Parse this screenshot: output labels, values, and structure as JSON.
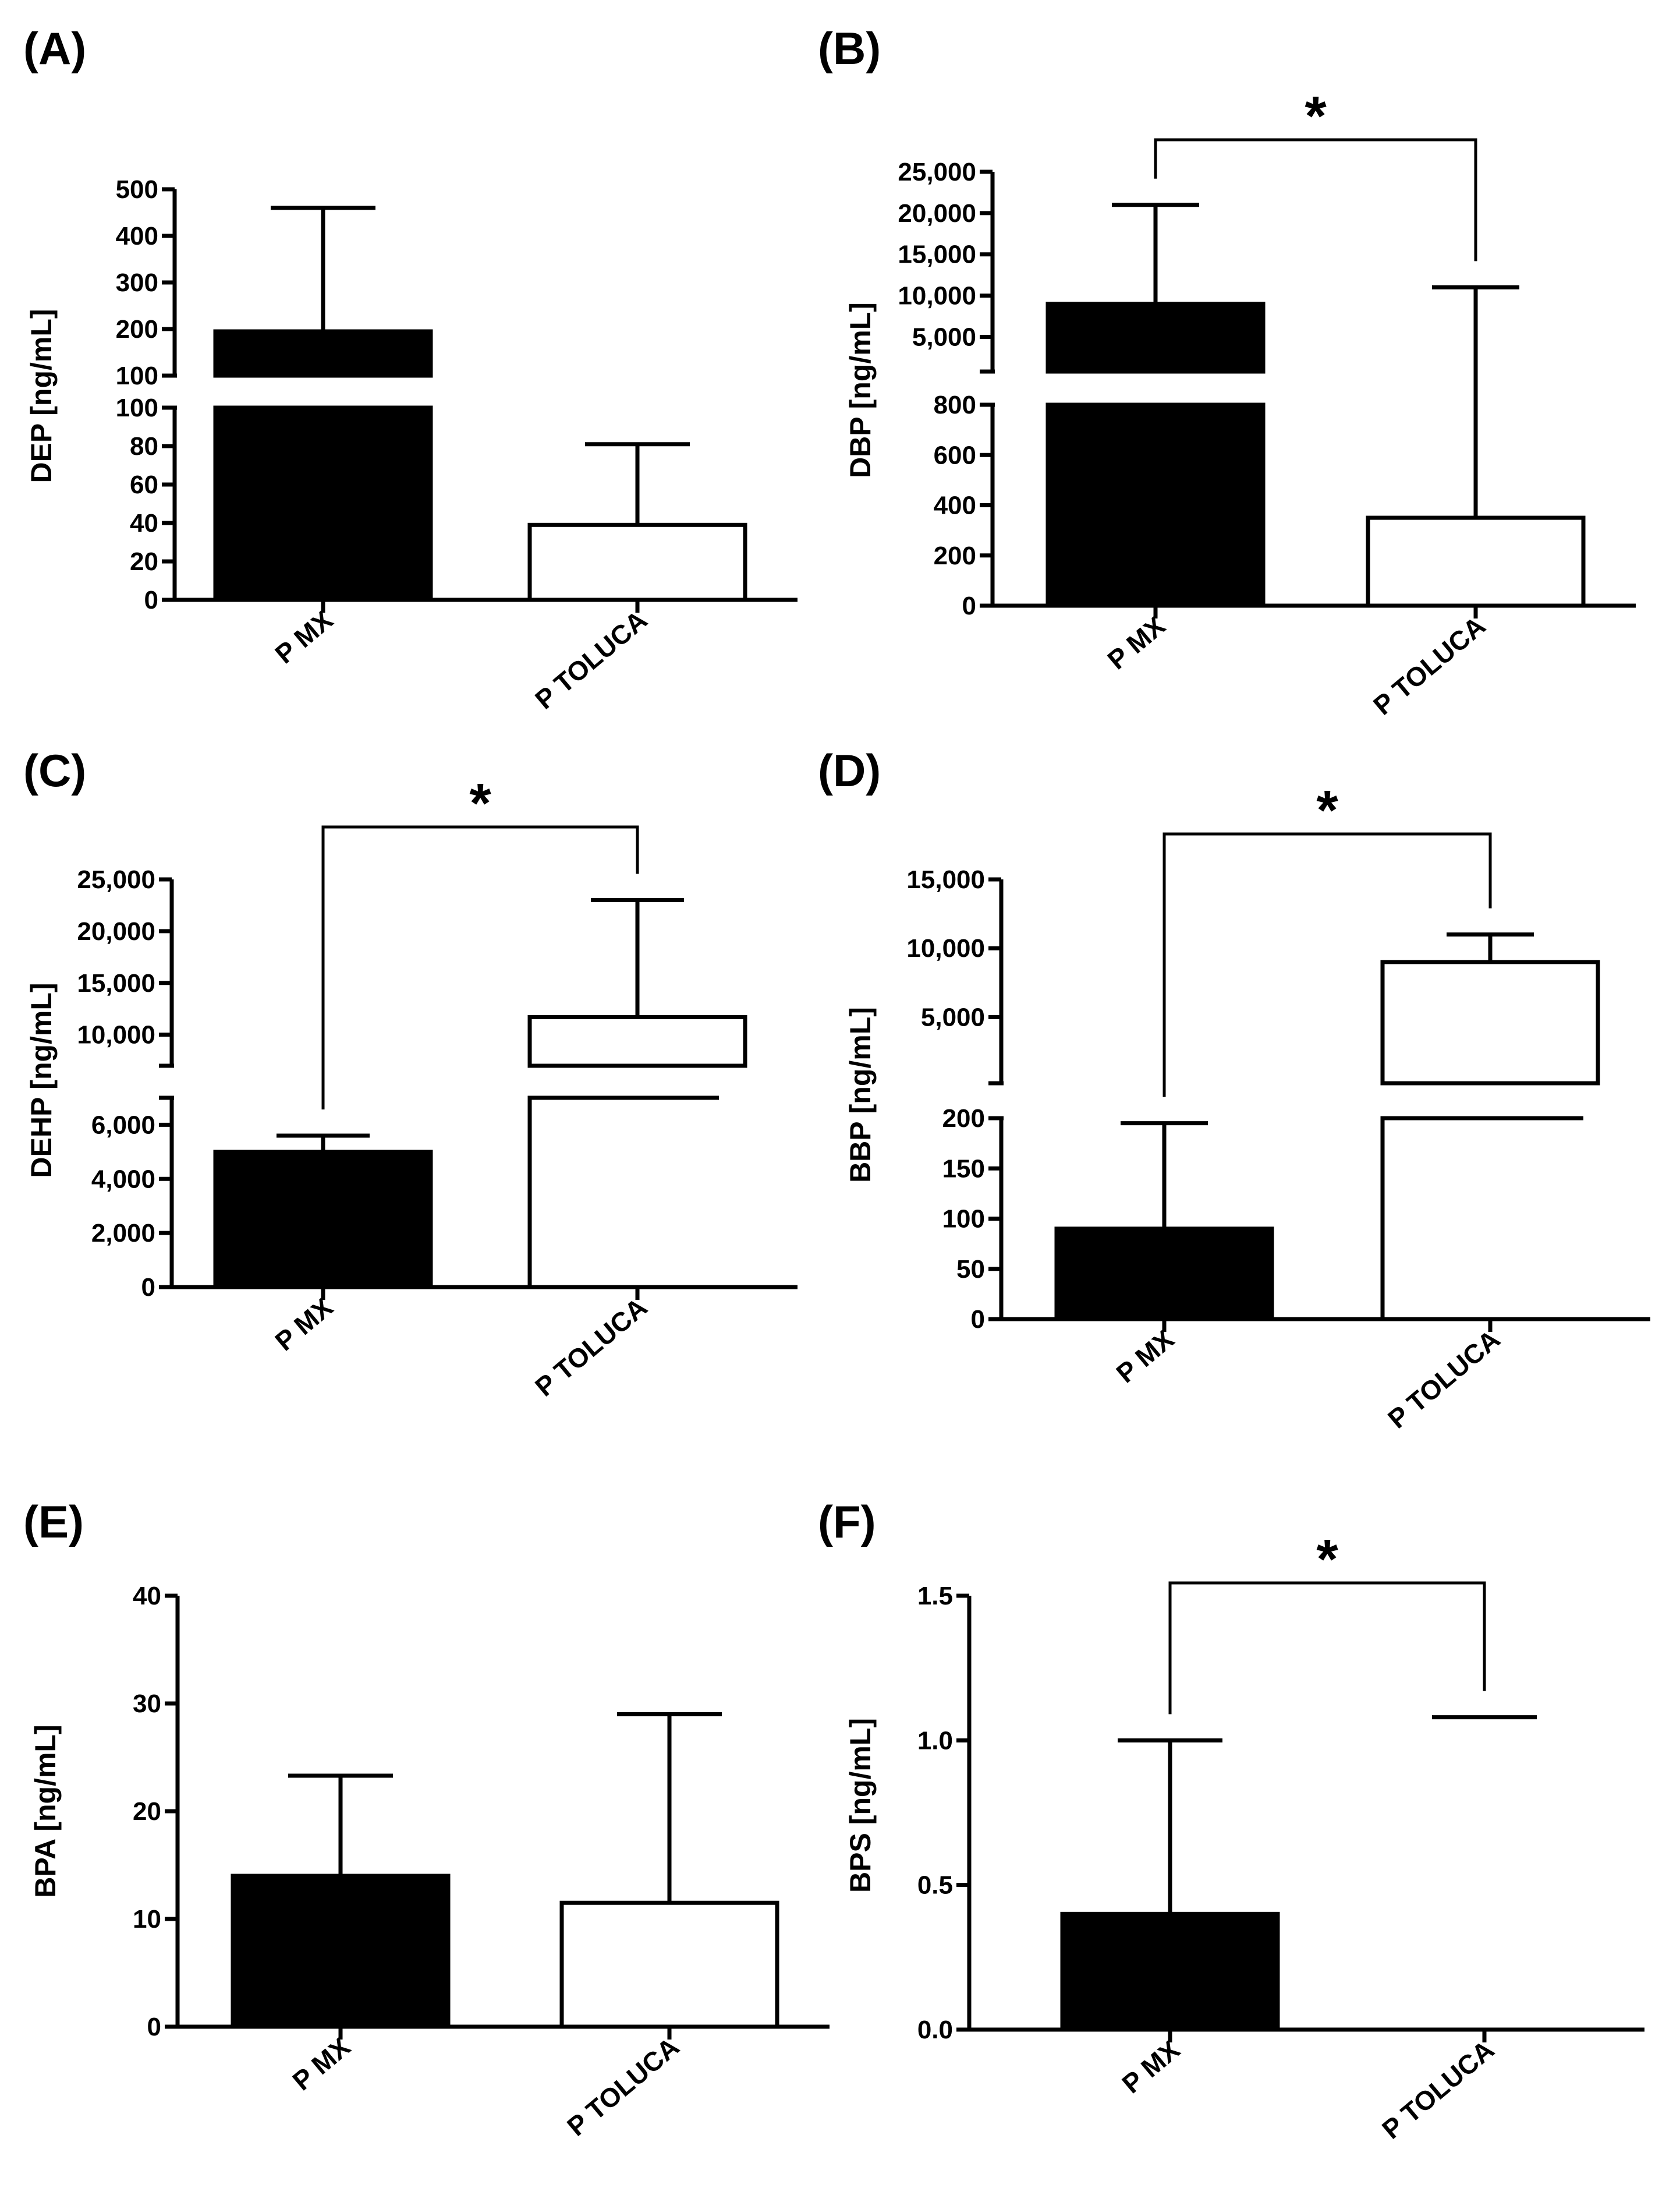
{
  "chart_data": [
    {
      "id": "A",
      "type": "bar",
      "panel_label": "(A)",
      "ylabel": "DEP [ng/mL]",
      "categories": [
        "P MX",
        "P TOLUCA"
      ],
      "values": [
        195,
        39
      ],
      "error_upper": [
        460,
        81
      ],
      "fills": [
        "#000000",
        "#ffffff"
      ],
      "axis_break": true,
      "lower_segment": {
        "ylim": [
          0,
          100
        ],
        "ticks": [
          0,
          20,
          40,
          60,
          80,
          100
        ],
        "tick_labels": [
          "0",
          "20",
          "40",
          "60",
          "80",
          "100"
        ]
      },
      "upper_segment": {
        "ylim": [
          100,
          500
        ],
        "ticks": [
          100,
          200,
          300,
          400,
          500
        ],
        "tick_labels": [
          "100",
          "200",
          "300",
          "400",
          "500"
        ]
      },
      "significance": null
    },
    {
      "id": "B",
      "type": "bar",
      "panel_label": "(B)",
      "ylabel": "DBP [ng/mL]",
      "categories": [
        "P MX",
        "P TOLUCA"
      ],
      "values": [
        9000,
        350
      ],
      "error_upper": [
        21000,
        11000
      ],
      "fills": [
        "#000000",
        "#ffffff"
      ],
      "axis_break": true,
      "lower_segment": {
        "ylim": [
          0,
          800
        ],
        "ticks": [
          0,
          200,
          400,
          600,
          800
        ],
        "tick_labels": [
          "0",
          "200",
          "400",
          "600",
          "800"
        ]
      },
      "upper_segment": {
        "ylim": [
          800,
          25000
        ],
        "ticks": [
          5000,
          10000,
          15000,
          20000,
          25000
        ],
        "tick_labels": [
          "5,000",
          "10,000",
          "15,000",
          "20,000",
          "25,000"
        ]
      },
      "significance": {
        "label": "*"
      }
    },
    {
      "id": "C",
      "type": "bar",
      "panel_label": "(C)",
      "ylabel": "DEHP [ng/mL]",
      "categories": [
        "P MX",
        "P TOLUCA"
      ],
      "values": [
        5000,
        11700
      ],
      "error_upper": [
        5600,
        23000
      ],
      "fills": [
        "#000000",
        "#ffffff"
      ],
      "axis_break": true,
      "lower_segment": {
        "ylim": [
          0,
          7000
        ],
        "ticks": [
          0,
          2000,
          4000,
          6000
        ],
        "tick_labels": [
          "0",
          "2,000",
          "4,000",
          "6,000"
        ]
      },
      "upper_segment": {
        "ylim": [
          7000,
          25000
        ],
        "ticks": [
          10000,
          15000,
          20000,
          25000
        ],
        "tick_labels": [
          "10,000",
          "15,000",
          "20,000",
          "25,000"
        ]
      },
      "significance": {
        "label": "*"
      }
    },
    {
      "id": "D",
      "type": "bar",
      "panel_label": "(D)",
      "ylabel": "BBP [ng/mL]",
      "categories": [
        "P MX",
        "P TOLUCA"
      ],
      "values": [
        90,
        9000
      ],
      "error_upper": [
        195,
        11000
      ],
      "fills": [
        "#000000",
        "#ffffff"
      ],
      "axis_break": true,
      "lower_segment": {
        "ylim": [
          0,
          200
        ],
        "ticks": [
          0,
          50,
          100,
          150,
          200
        ],
        "tick_labels": [
          "0",
          "50",
          "100",
          "150",
          "200"
        ]
      },
      "upper_segment": {
        "ylim": [
          200,
          15000
        ],
        "ticks": [
          5000,
          10000,
          15000
        ],
        "tick_labels": [
          "5,000",
          "10,000",
          "15,000"
        ]
      },
      "significance": {
        "label": "*"
      }
    },
    {
      "id": "E",
      "type": "bar",
      "panel_label": "(E)",
      "ylabel": "BPA [ng/mL]",
      "categories": [
        "P MX",
        "P TOLUCA"
      ],
      "values": [
        14,
        11.5
      ],
      "error_upper": [
        23.3,
        29
      ],
      "fills": [
        "#000000",
        "#ffffff"
      ],
      "axis_break": false,
      "ylim": [
        0,
        40
      ],
      "ticks": [
        0,
        10,
        20,
        30,
        40
      ],
      "tick_labels": [
        "0",
        "10",
        "20",
        "30",
        "40"
      ],
      "significance": null
    },
    {
      "id": "F",
      "type": "bar",
      "panel_label": "(F)",
      "ylabel": "BPS [ng/mL]",
      "categories": [
        "P MX",
        "P TOLUCA"
      ],
      "values": [
        0.4,
        0
      ],
      "error_upper": [
        1.0,
        1.08
      ],
      "fills": [
        "#000000",
        "#ffffff"
      ],
      "axis_break": false,
      "ylim": [
        0,
        1.5
      ],
      "ticks": [
        0,
        0.5,
        1.0,
        1.5
      ],
      "tick_labels": [
        "0.0",
        "0.5",
        "1.0",
        "1.5"
      ],
      "significance": {
        "label": "*"
      }
    }
  ]
}
